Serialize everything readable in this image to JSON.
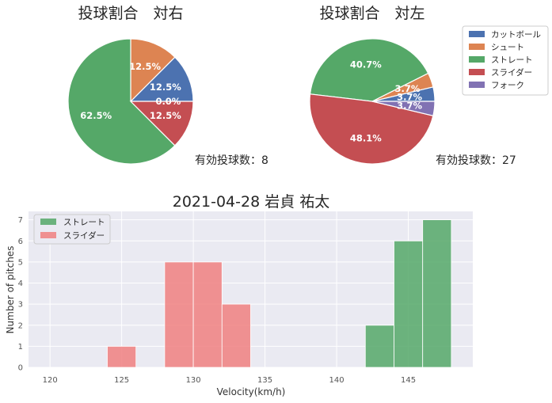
{
  "chart_data": [
    {
      "type": "pie",
      "title": "投球割合　対右",
      "labels": [
        "カットボール",
        "シュート",
        "ストレート",
        "スライダー",
        "フォーク"
      ],
      "values": [
        12.5,
        12.5,
        62.5,
        12.5,
        0.0
      ],
      "value_labels": [
        "12.5%",
        "12.5%",
        "62.5%",
        "12.5%",
        "0.0%"
      ],
      "note": "有効投球数：8"
    },
    {
      "type": "pie",
      "title": "投球割合　対左",
      "labels": [
        "カットボール",
        "シュート",
        "ストレート",
        "スライダー",
        "フォーク"
      ],
      "values": [
        3.7,
        3.7,
        40.7,
        48.1,
        3.7
      ],
      "value_labels": [
        "3.7%",
        "3.7%",
        "40.7%",
        "48.1%",
        "3.7%"
      ],
      "note": "有効投球数：27",
      "legend": "top-right"
    },
    {
      "type": "bar",
      "title": "2021-04-28 岩貞 祐太",
      "xlabel": "Velocity(km/h)",
      "ylabel": "Number of pitches",
      "xlim": [
        118.5,
        149.5
      ],
      "ylim": [
        0,
        7.4
      ],
      "xticks": [
        120,
        125,
        130,
        135,
        140,
        145
      ],
      "yticks": [
        0,
        1,
        2,
        3,
        4,
        5,
        6,
        7
      ],
      "grid": true,
      "legend": "top-left",
      "series": [
        {
          "name": "ストレート",
          "bins": [
            [
              142,
              144,
              2
            ],
            [
              144,
              146,
              6
            ],
            [
              146,
              148,
              7
            ]
          ]
        },
        {
          "name": "スライダー",
          "bins": [
            [
              124,
              126,
              1
            ],
            [
              128,
              130,
              5
            ],
            [
              130,
              132,
              5
            ],
            [
              132,
              134,
              3
            ]
          ]
        }
      ]
    }
  ],
  "colors": {
    "pie": [
      "#4C72B0",
      "#DD8452",
      "#55A868",
      "#C44E52",
      "#8172B3"
    ],
    "hist": [
      "#55A868",
      "#F08080"
    ],
    "axes_bg": "#EAEAF2"
  }
}
